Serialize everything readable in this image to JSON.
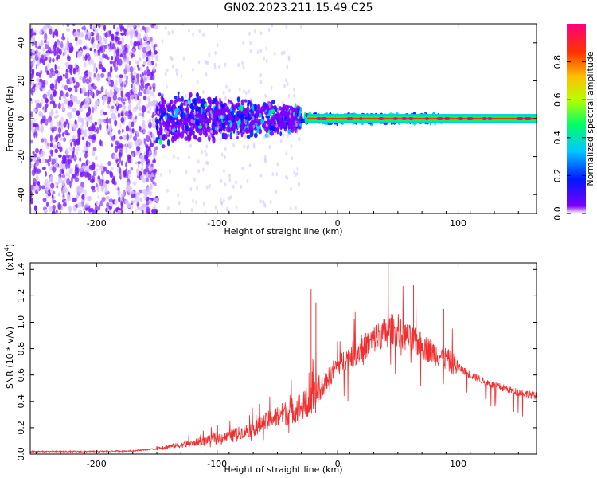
{
  "figure": {
    "title": "GN02.2023.211.15.49.C25"
  },
  "colors": {
    "background": "#ffffff",
    "axis": "#000000",
    "snr_line": "#f03030",
    "spectral_dots": "#7a1bff",
    "colormap": [
      "#ffffff",
      "#7c00ff",
      "#0018ff",
      "#00c8ff",
      "#00ff66",
      "#b8ff00",
      "#ffc000",
      "#ff3300",
      "#ff007a"
    ]
  },
  "chart_data": [
    {
      "type": "heatmap",
      "title": "GN02.2023.211.15.49.C25",
      "xlabel": "Height of straight line (km)",
      "ylabel": "Frequency (Hz)",
      "xlim": [
        -255,
        165
      ],
      "ylim": [
        -50,
        50
      ],
      "x_ticks": [
        -200,
        -100,
        0,
        100
      ],
      "x_tick_labels": [
        "-200",
        "-100",
        "0",
        "100"
      ],
      "y_ticks": [
        -40,
        -20,
        0,
        20,
        40
      ],
      "y_tick_labels": [
        "-40",
        "-20",
        "0",
        "20",
        "40"
      ],
      "colorbar": {
        "label": "Normalized spectral amplitude",
        "range": [
          0.0,
          1.0
        ],
        "ticks": [
          0.0,
          0.2,
          0.4,
          0.6,
          0.8
        ],
        "tick_labels": [
          "0.0",
          "0.2",
          "0.4",
          "0.6",
          "0.8"
        ]
      },
      "regions": [
        {
          "x_range": [
            -255,
            -150
          ],
          "freq_range": [
            -50,
            50
          ],
          "amplitude": 0.15,
          "description": "broadband"
        },
        {
          "x_range": [
            -150,
            -30
          ],
          "freq_range": [
            -14,
            14
          ],
          "amplitude": 0.3
        },
        {
          "x_range": [
            -30,
            90
          ],
          "freq_range": [
            -2,
            2
          ],
          "amplitude": 0.45
        },
        {
          "x_range": [
            -25,
            165
          ],
          "freq_range": [
            -1,
            1
          ],
          "amplitude": 0.9
        }
      ],
      "grid": false
    },
    {
      "type": "line",
      "xlabel": "Height of straight line (km)",
      "ylabel": "SNR (10 * v/v)",
      "y_multiplier_label": "(x10",
      "y_multiplier_exp": "4",
      "y_multiplier_close": ")",
      "xlim": [
        -255,
        165
      ],
      "ylim": [
        0.0,
        1.45
      ],
      "x_ticks": [
        -200,
        -100,
        0,
        100
      ],
      "x_tick_labels": [
        "-200",
        "-100",
        "0",
        "100"
      ],
      "y_ticks": [
        0.0,
        0.2,
        0.4,
        0.6,
        0.8,
        1.0,
        1.2,
        1.4
      ],
      "y_tick_labels": [
        "0.0",
        "0.2",
        "0.4",
        "0.6",
        "0.8",
        "1.0",
        "1.2",
        "1.4"
      ],
      "series": [
        {
          "x": [
            -255,
            -230,
            -200,
            -170,
            -150,
            -130,
            -110,
            -90,
            -70,
            -50,
            -35,
            -20,
            -15,
            -10,
            0,
            20,
            35,
            45,
            55,
            70,
            90,
            110,
            130,
            150,
            165
          ],
          "values": [
            0.02,
            0.02,
            0.02,
            0.025,
            0.04,
            0.06,
            0.09,
            0.12,
            0.17,
            0.25,
            0.3,
            0.35,
            0.45,
            0.55,
            0.68,
            0.8,
            0.9,
            0.95,
            0.9,
            0.82,
            0.72,
            0.6,
            0.52,
            0.47,
            0.44
          ]
        }
      ],
      "spikes": [
        {
          "x": -22,
          "value": 1.25
        },
        {
          "x": -18,
          "value": 1.15
        },
        {
          "x": 42,
          "value": 1.45
        },
        {
          "x": 63,
          "value": 1.28
        },
        {
          "x": 88,
          "value": 1.1
        }
      ],
      "grid": false
    }
  ]
}
